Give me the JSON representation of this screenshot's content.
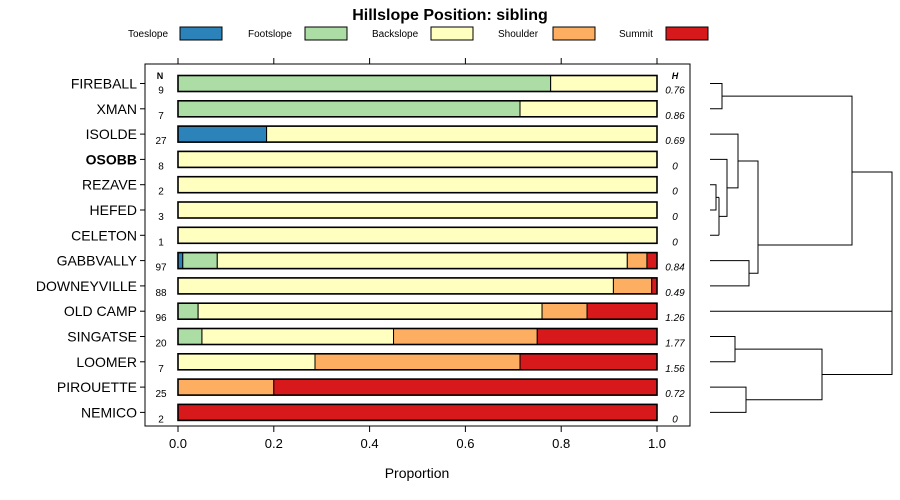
{
  "chart_data": {
    "type": "bar",
    "orientation": "horizontal",
    "stacked": true,
    "title": "Hillslope Position: sibling",
    "xlabel": "Proportion",
    "ylabel": "",
    "xlim": [
      0,
      1
    ],
    "x_ticks": [
      "0.0",
      "0.2",
      "0.4",
      "0.6",
      "0.8",
      "1.0"
    ],
    "n_header": "N",
    "h_header": "H",
    "highlight": "OSOBB",
    "legend_position": "top",
    "legend": [
      {
        "name": "Toeslope",
        "color": "#2b83ba"
      },
      {
        "name": "Footslope",
        "color": "#abdda4"
      },
      {
        "name": "Backslope",
        "color": "#ffffbf"
      },
      {
        "name": "Shoulder",
        "color": "#fdae61"
      },
      {
        "name": "Summit",
        "color": "#d7191c"
      }
    ],
    "categories": [
      "FIREBALL",
      "XMAN",
      "ISOLDE",
      "OSOBB",
      "REZAVE",
      "HEFED",
      "CELETON",
      "GABBVALLY",
      "DOWNEYVILLE",
      "OLD CAMP",
      "SINGATSE",
      "LOOMER",
      "PIROUETTE",
      "NEMICO"
    ],
    "n_values": [
      "9",
      "7",
      "27",
      "8",
      "2",
      "3",
      "1",
      "97",
      "88",
      "96",
      "20",
      "7",
      "25",
      "2"
    ],
    "h_values": [
      "0.76",
      "0.86",
      "0.69",
      "0",
      "0",
      "0",
      "0",
      "0.84",
      "0.49",
      "1.26",
      "1.77",
      "1.56",
      "0.72",
      "0"
    ],
    "series": [
      {
        "name": "Toeslope",
        "values": [
          0,
          0,
          0.185,
          0,
          0,
          0,
          0,
          0.01,
          0,
          0,
          0,
          0,
          0,
          0
        ]
      },
      {
        "name": "Footslope",
        "values": [
          0.778,
          0.714,
          0,
          0,
          0,
          0,
          0,
          0.072,
          0,
          0.042,
          0.05,
          0,
          0,
          0
        ]
      },
      {
        "name": "Backslope",
        "values": [
          0.222,
          0.286,
          0.815,
          1,
          1,
          1,
          1,
          0.856,
          0.909,
          0.718,
          0.4,
          0.286,
          0,
          0
        ]
      },
      {
        "name": "Shoulder",
        "values": [
          0,
          0,
          0,
          0,
          0,
          0,
          0,
          0.041,
          0.08,
          0.094,
          0.3,
          0.428,
          0.2,
          0
        ]
      },
      {
        "name": "Summit",
        "values": [
          0,
          0,
          0,
          0,
          0,
          0,
          0,
          0.021,
          0.011,
          0.146,
          0.25,
          0.286,
          0.8,
          1
        ]
      }
    ]
  }
}
